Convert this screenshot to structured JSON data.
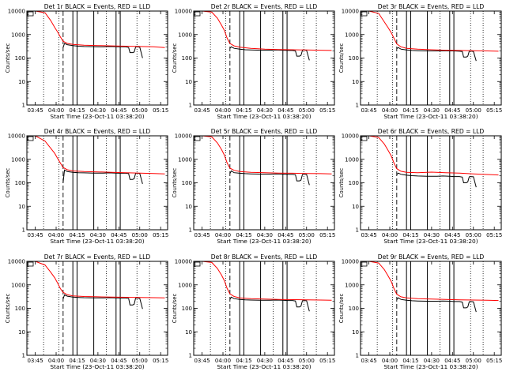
{
  "page": {
    "background": "#ffffff"
  },
  "chart_data": {
    "type": "line",
    "layout": "3x3 grid",
    "x_unit": "time of day (hh:mm), 23-Oct-11",
    "ylog": true,
    "ylim": [
      1,
      10000
    ],
    "yticks": [
      1,
      10,
      100,
      1000,
      10000
    ],
    "ytick_labels": [
      "1",
      "10",
      "100",
      "1000",
      "10000"
    ],
    "xlim": [
      "03:39",
      "05:20"
    ],
    "xtick_labels": [
      "03:45",
      "04:00",
      "04:15",
      "04:30",
      "04:45",
      "05:00",
      "05:15"
    ],
    "xlabel": "Start Time (23-Oct-11 03:38:20)",
    "ylabel": "Counts/sec",
    "colors": {
      "events": "#000000",
      "lld": "#ff0000",
      "axes": "#000000"
    },
    "dotted_vlines": [
      "03:51",
      "04:02",
      "04:36",
      "04:58",
      "05:07"
    ],
    "dashed_vline": "04:05",
    "solid_vlines": [
      "04:12",
      "04:15",
      "04:27",
      "04:43",
      "04:46"
    ],
    "panels": [
      {
        "title": "Det 1r BLACK = Events, RED = LLD",
        "series": [
          {
            "name": "Events",
            "color": "#000000",
            "x": [
              "04:05",
              "04:06",
              "04:08",
              "04:12",
              "04:16",
              "04:20",
              "04:27",
              "04:30",
              "04:34",
              "04:38",
              "04:43",
              "04:46",
              "04:50",
              "04:52",
              "04:53",
              "04:55",
              "04:56",
              "04:57",
              "04:58",
              "05:00",
              "05:02"
            ],
            "y": [
              280,
              420,
              370,
              340,
              320,
              310,
              305,
              300,
              300,
              310,
              305,
              300,
              300,
              280,
              170,
              170,
              180,
              290,
              300,
              290,
              100
            ]
          },
          {
            "name": "LLD",
            "color": "#ff0000",
            "x": [
              "03:39",
              "03:45",
              "03:52",
              "03:56",
              "03:59",
              "04:01",
              "04:03",
              "04:05",
              "04:08",
              "04:12",
              "04:20",
              "04:30",
              "04:40",
              "04:50",
              "05:00",
              "05:10",
              "05:18"
            ],
            "y": [
              10000,
              10000,
              8500,
              4000,
              2000,
              1300,
              800,
              520,
              420,
              380,
              350,
              340,
              330,
              320,
              310,
              300,
              280
            ]
          }
        ]
      },
      {
        "title": "Det 2r BLACK = Events, RED = LLD",
        "series": [
          {
            "name": "Events",
            "color": "#000000",
            "x": [
              "04:05",
              "04:06",
              "04:08",
              "04:12",
              "04:16",
              "04:20",
              "04:27",
              "04:30",
              "04:34",
              "04:38",
              "04:43",
              "04:46",
              "04:50",
              "04:52",
              "04:53",
              "04:55",
              "04:56",
              "04:57",
              "04:58",
              "05:00",
              "05:02"
            ],
            "y": [
              260,
              300,
              260,
              240,
              225,
              220,
              215,
              215,
              215,
              220,
              215,
              210,
              210,
              200,
              120,
              120,
              130,
              210,
              220,
              210,
              80
            ]
          },
          {
            "name": "LLD",
            "color": "#ff0000",
            "x": [
              "03:39",
              "03:45",
              "03:52",
              "03:56",
              "03:59",
              "04:01",
              "04:03",
              "04:05",
              "04:08",
              "04:12",
              "04:20",
              "04:30",
              "04:40",
              "04:50",
              "05:00",
              "05:10",
              "05:18"
            ],
            "y": [
              10000,
              10000,
              9000,
              5000,
              2500,
              1500,
              700,
              420,
              330,
              290,
              260,
              240,
              230,
              225,
              220,
              215,
              210
            ]
          }
        ]
      },
      {
        "title": "Det 3r BLACK = Events, RED = LLD",
        "series": [
          {
            "name": "Events",
            "color": "#000000",
            "x": [
              "04:05",
              "04:06",
              "04:08",
              "04:12",
              "04:16",
              "04:20",
              "04:27",
              "04:30",
              "04:34",
              "04:38",
              "04:43",
              "04:46",
              "04:50",
              "04:52",
              "04:53",
              "04:55",
              "04:56",
              "04:57",
              "04:58",
              "05:00",
              "05:02"
            ],
            "y": [
              250,
              280,
              240,
              220,
              210,
              205,
              200,
              200,
              200,
              205,
              200,
              200,
              195,
              190,
              110,
              110,
              120,
              195,
              200,
              190,
              75
            ]
          },
          {
            "name": "LLD",
            "color": "#ff0000",
            "x": [
              "03:39",
              "03:45",
              "03:52",
              "03:56",
              "03:59",
              "04:01",
              "04:03",
              "04:05",
              "04:08",
              "04:12",
              "04:20",
              "04:30",
              "04:40",
              "04:50",
              "05:00",
              "05:10",
              "05:18"
            ],
            "y": [
              10000,
              10000,
              8000,
              3500,
              1900,
              1200,
              700,
              400,
              300,
              260,
              240,
              225,
              215,
              210,
              205,
              200,
              195
            ]
          }
        ]
      },
      {
        "title": "Det 4r BLACK = Events, RED = LLD",
        "series": [
          {
            "name": "Events",
            "color": "#000000",
            "x": [
              "04:05",
              "04:06",
              "04:08",
              "04:12",
              "04:16",
              "04:20",
              "04:27",
              "04:30",
              "04:34",
              "04:38",
              "04:43",
              "04:46",
              "04:50",
              "04:52",
              "04:53",
              "04:55",
              "04:56",
              "04:57",
              "04:58",
              "05:00",
              "05:02"
            ],
            "y": [
              100,
              350,
              300,
              280,
              270,
              265,
              260,
              260,
              260,
              265,
              260,
              255,
              255,
              245,
              140,
              140,
              150,
              250,
              260,
              250,
              90
            ]
          },
          {
            "name": "LLD",
            "color": "#ff0000",
            "x": [
              "03:39",
              "03:45",
              "03:52",
              "03:56",
              "03:59",
              "04:01",
              "04:03",
              "04:05",
              "04:08",
              "04:12",
              "04:20",
              "04:30",
              "04:40",
              "04:50",
              "05:00",
              "05:10",
              "05:18"
            ],
            "y": [
              10000,
              10000,
              6000,
              3000,
              1800,
              1100,
              700,
              450,
              360,
              320,
              300,
              290,
              280,
              270,
              260,
              250,
              240
            ]
          }
        ]
      },
      {
        "title": "Det 5r BLACK = Events, RED = LLD",
        "series": [
          {
            "name": "Events",
            "color": "#000000",
            "x": [
              "04:05",
              "04:06",
              "04:08",
              "04:12",
              "04:16",
              "04:20",
              "04:27",
              "04:30",
              "04:34",
              "04:38",
              "04:43",
              "04:46",
              "04:50",
              "04:52",
              "04:53",
              "04:55",
              "04:56",
              "04:57",
              "04:58",
              "05:00",
              "05:02"
            ],
            "y": [
              250,
              320,
              270,
              255,
              245,
              240,
              235,
              235,
              235,
              240,
              235,
              230,
              230,
              220,
              120,
              120,
              130,
              225,
              235,
              225,
              80
            ]
          },
          {
            "name": "LLD",
            "color": "#ff0000",
            "x": [
              "03:39",
              "03:45",
              "03:52",
              "03:56",
              "03:59",
              "04:01",
              "04:03",
              "04:05",
              "04:08",
              "04:12",
              "04:20",
              "04:30",
              "04:40",
              "04:50",
              "05:00",
              "05:10",
              "05:18"
            ],
            "y": [
              10000,
              10000,
              9000,
              5000,
              2600,
              1500,
              700,
              420,
              340,
              300,
              280,
              270,
              260,
              255,
              250,
              245,
              240
            ]
          }
        ]
      },
      {
        "title": "Det 6r BLACK = Events, RED = LLD",
        "series": [
          {
            "name": "Events",
            "color": "#000000",
            "x": [
              "04:05",
              "04:06",
              "04:08",
              "04:12",
              "04:16",
              "04:20",
              "04:27",
              "04:30",
              "04:34",
              "04:38",
              "04:43",
              "04:46",
              "04:50",
              "04:52",
              "04:53",
              "04:55",
              "04:56",
              "04:57",
              "04:58",
              "05:00",
              "05:02"
            ],
            "y": [
              220,
              260,
              230,
              210,
              200,
              195,
              190,
              190,
              190,
              195,
              190,
              185,
              185,
              175,
              100,
              100,
              110,
              180,
              185,
              180,
              65
            ]
          },
          {
            "name": "LLD",
            "color": "#ff0000",
            "x": [
              "03:39",
              "03:45",
              "03:52",
              "03:56",
              "03:59",
              "04:01",
              "04:03",
              "04:05",
              "04:08",
              "04:12",
              "04:20",
              "04:30",
              "04:40",
              "04:50",
              "05:00",
              "05:10",
              "05:18"
            ],
            "y": [
              10000,
              10000,
              8500,
              4500,
              2300,
              1400,
              700,
              400,
              310,
              280,
              270,
              285,
              270,
              260,
              240,
              225,
              215
            ]
          }
        ]
      },
      {
        "title": "Det 7r BLACK = Events, RED = LLD",
        "series": [
          {
            "name": "Events",
            "color": "#000000",
            "x": [
              "04:05",
              "04:06",
              "04:08",
              "04:12",
              "04:16",
              "04:20",
              "04:27",
              "04:30",
              "04:34",
              "04:38",
              "04:43",
              "04:46",
              "04:50",
              "04:52",
              "04:53",
              "04:55",
              "04:56",
              "04:57",
              "04:58",
              "05:00",
              "05:02"
            ],
            "y": [
              250,
              380,
              330,
              300,
              290,
              285,
              280,
              280,
              280,
              285,
              280,
              275,
              275,
              265,
              140,
              140,
              150,
              270,
              275,
              265,
              95
            ]
          },
          {
            "name": "LLD",
            "color": "#ff0000",
            "x": [
              "03:39",
              "03:45",
              "03:52",
              "03:56",
              "03:59",
              "04:01",
              "04:03",
              "04:05",
              "04:08",
              "04:12",
              "04:20",
              "04:30",
              "04:40",
              "04:50",
              "05:00",
              "05:10",
              "05:18"
            ],
            "y": [
              10000,
              10000,
              7000,
              3500,
              2000,
              1200,
              700,
              480,
              380,
              340,
              320,
              310,
              300,
              295,
              290,
              285,
              280
            ]
          }
        ]
      },
      {
        "title": "Det 8r BLACK = Events, RED = LLD",
        "series": [
          {
            "name": "Events",
            "color": "#000000",
            "x": [
              "04:05",
              "04:06",
              "04:08",
              "04:12",
              "04:16",
              "04:20",
              "04:27",
              "04:30",
              "04:34",
              "04:38",
              "04:43",
              "04:46",
              "04:50",
              "04:52",
              "04:53",
              "04:55",
              "04:56",
              "04:57",
              "04:58",
              "05:00",
              "05:02"
            ],
            "y": [
              240,
              300,
              260,
              240,
              230,
              225,
              220,
              220,
              220,
              225,
              220,
              215,
              215,
              205,
              115,
              115,
              125,
              210,
              215,
              210,
              75
            ]
          },
          {
            "name": "LLD",
            "color": "#ff0000",
            "x": [
              "03:39",
              "03:45",
              "03:52",
              "03:56",
              "03:59",
              "04:01",
              "04:03",
              "04:05",
              "04:08",
              "04:12",
              "04:20",
              "04:30",
              "04:40",
              "04:50",
              "05:00",
              "05:10",
              "05:18"
            ],
            "y": [
              10000,
              10000,
              9000,
              5000,
              2600,
              1500,
              700,
              420,
              320,
              280,
              260,
              250,
              240,
              235,
              230,
              225,
              220
            ]
          }
        ]
      },
      {
        "title": "Det 9r BLACK = Events, RED = LLD",
        "series": [
          {
            "name": "Events",
            "color": "#000000",
            "x": [
              "04:05",
              "04:06",
              "04:08",
              "04:12",
              "04:16",
              "04:20",
              "04:27",
              "04:30",
              "04:34",
              "04:38",
              "04:43",
              "04:46",
              "04:50",
              "04:52",
              "04:53",
              "04:55",
              "04:56",
              "04:57",
              "04:58",
              "05:00",
              "05:02"
            ],
            "y": [
              230,
              280,
              240,
              220,
              210,
              205,
              200,
              200,
              200,
              205,
              200,
              195,
              195,
              185,
              105,
              105,
              115,
              190,
              195,
              190,
              70
            ]
          },
          {
            "name": "LLD",
            "color": "#ff0000",
            "x": [
              "03:39",
              "03:45",
              "03:52",
              "03:56",
              "03:59",
              "04:01",
              "04:03",
              "04:05",
              "04:08",
              "04:12",
              "04:20",
              "04:30",
              "04:40",
              "04:50",
              "05:00",
              "05:10",
              "05:18"
            ],
            "y": [
              10000,
              10000,
              8500,
              4500,
              2300,
              1400,
              700,
              400,
              310,
              280,
              260,
              250,
              240,
              230,
              225,
              220,
              215
            ]
          }
        ]
      }
    ]
  }
}
